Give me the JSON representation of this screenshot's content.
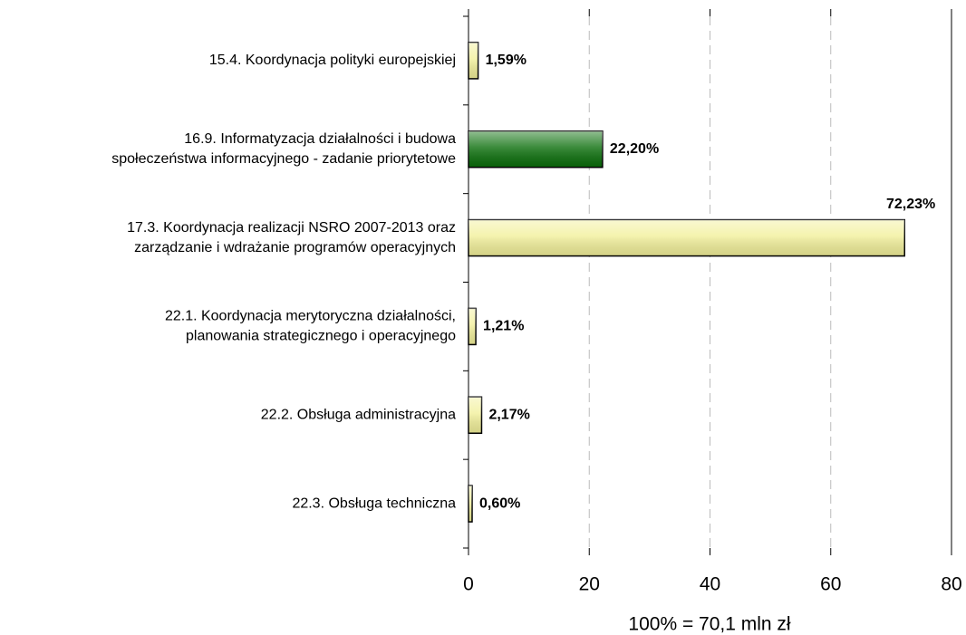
{
  "chart_data": {
    "type": "barh",
    "categories": [
      [
        "15.4. Koordynacja polityki europejskiej"
      ],
      [
        "16.9. Informatyzacja działalności i budowa",
        "społeczeństwa informacyjnego - zadanie priorytetowe"
      ],
      [
        "17.3. Koordynacja realizacji NSRO 2007-2013 oraz",
        "zarządzanie i wdrażanie programów operacyjnych"
      ],
      [
        "22.1. Koordynacja merytoryczna działalności,",
        "planowania strategicznego i operacyjnego"
      ],
      [
        "22.2. Obsługa administracyjna"
      ],
      [
        "22.3. Obsługa techniczna"
      ]
    ],
    "values": [
      1.59,
      22.2,
      72.23,
      1.21,
      2.17,
      0.6
    ],
    "value_labels": [
      "1,59%",
      "22,20%",
      "72,23%",
      "1,21%",
      "2,17%",
      "0,60%"
    ],
    "colors": [
      "#f2f09a",
      "#0a6e0a",
      "#f2f09a",
      "#f2f09a",
      "#f2f09a",
      "#f2f09a"
    ],
    "xlim": [
      0,
      80
    ],
    "xticks": [
      0,
      20,
      40,
      60,
      80
    ],
    "grid": true,
    "xlabel": "100% = 70,1 mln zł"
  }
}
